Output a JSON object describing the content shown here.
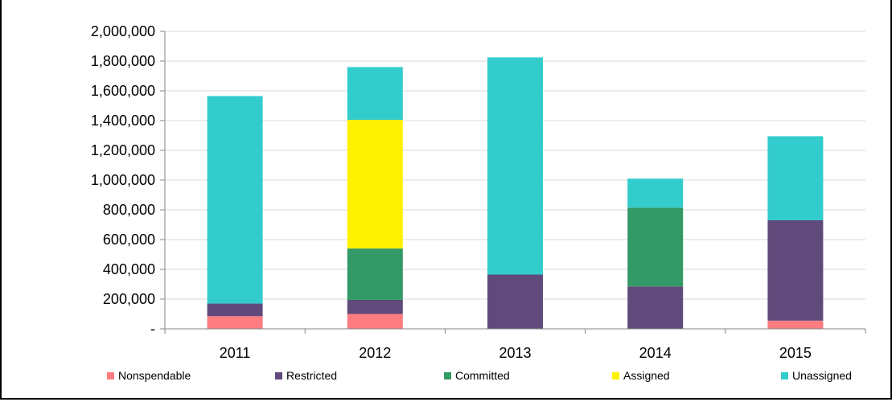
{
  "chart_data": {
    "type": "bar",
    "stacked": true,
    "categories": [
      "2011",
      "2012",
      "2013",
      "2014",
      "2015"
    ],
    "series": [
      {
        "name": "Nonspendable",
        "color": "#FF7C80",
        "values": [
          85000,
          100000,
          0,
          0,
          55000
        ]
      },
      {
        "name": "Restricted",
        "color": "#604A7B",
        "values": [
          85000,
          95000,
          365000,
          285000,
          675000
        ]
      },
      {
        "name": "Committed",
        "color": "#339966",
        "values": [
          0,
          345000,
          0,
          530000,
          0
        ]
      },
      {
        "name": "Assigned",
        "color": "#FFF200",
        "values": [
          0,
          865000,
          0,
          0,
          0
        ]
      },
      {
        "name": "Unassigned",
        "color": "#33CCCC",
        "values": [
          1395000,
          355000,
          1460000,
          195000,
          565000
        ]
      }
    ],
    "yticks": [
      "-",
      "200,000",
      "400,000",
      "600,000",
      "800,000",
      "1,000,000",
      "1,200,000",
      "1,400,000",
      "1,600,000",
      "1,800,000",
      "2,000,000"
    ],
    "ylim": [
      0,
      2000000
    ],
    "grid": true,
    "legend_position": "bottom"
  }
}
